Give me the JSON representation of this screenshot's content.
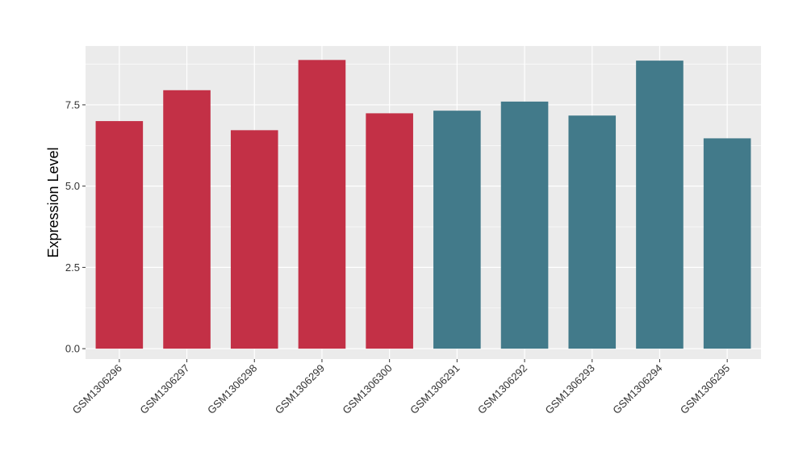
{
  "chart_data": {
    "type": "bar",
    "categories": [
      "GSM1306296",
      "GSM1306297",
      "GSM1306298",
      "GSM1306299",
      "GSM1306300",
      "GSM1306291",
      "GSM1306292",
      "GSM1306293",
      "GSM1306294",
      "GSM1306295"
    ],
    "values": [
      7.0,
      7.95,
      6.72,
      8.88,
      7.24,
      7.32,
      7.6,
      7.17,
      8.86,
      6.47
    ],
    "bar_colors": [
      "#c33046",
      "#c33046",
      "#c33046",
      "#c33046",
      "#c33046",
      "#427a8a",
      "#427a8a",
      "#427a8a",
      "#427a8a",
      "#427a8a"
    ],
    "title": "",
    "xlabel": "",
    "ylabel": "Expression Level",
    "ylim": [
      -0.32,
      9.31
    ],
    "yticks": [
      0,
      2.5,
      5,
      7.5
    ],
    "ytick_labels": [
      "0.0",
      "2.5",
      "5.0",
      "7.5"
    ],
    "grid": true,
    "legend": "none",
    "panel_background": "#ebebeb",
    "grid_color": "#ffffff"
  }
}
